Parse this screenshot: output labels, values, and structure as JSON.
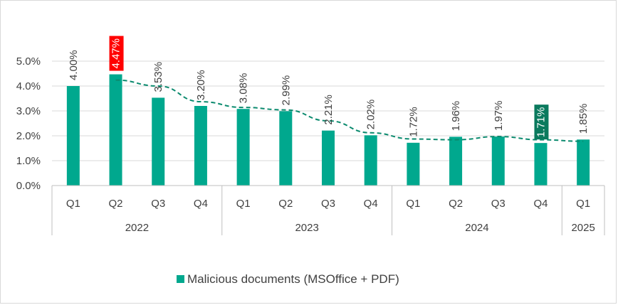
{
  "chart_data": {
    "type": "bar",
    "categories": [
      "Q1",
      "Q2",
      "Q3",
      "Q4",
      "Q1",
      "Q2",
      "Q3",
      "Q4",
      "Q1",
      "Q2",
      "Q3",
      "Q4",
      "Q1"
    ],
    "groups": [
      {
        "label": "2022",
        "count": 4
      },
      {
        "label": "2023",
        "count": 4
      },
      {
        "label": "2024",
        "count": 4
      },
      {
        "label": "2025",
        "count": 1
      }
    ],
    "series": [
      {
        "name": "Malicious documents (MSOffice + PDF)",
        "values": [
          4.0,
          4.47,
          3.53,
          3.2,
          3.08,
          2.99,
          2.21,
          2.02,
          1.72,
          1.96,
          1.97,
          1.71,
          1.85
        ],
        "labels": [
          "4.00%",
          "4.47%",
          "3.53%",
          "3.20%",
          "3.08%",
          "2.99%",
          "2.21%",
          "2.02%",
          "1.72%",
          "1.96%",
          "1.97%",
          "1.71%",
          "1.85%"
        ]
      }
    ],
    "trendline": {
      "type": "moving-average",
      "style": "dashed",
      "values": [
        null,
        4.24,
        4.0,
        3.37,
        3.14,
        3.04,
        2.6,
        2.12,
        1.87,
        1.84,
        1.97,
        1.84,
        1.78
      ]
    },
    "highlights": [
      {
        "index": 1,
        "color": "#ff0000"
      },
      {
        "index": 11,
        "color": "#0b7a5e"
      }
    ],
    "yticks": [
      "0.0%",
      "1.0%",
      "2.0%",
      "3.0%",
      "4.0%",
      "5.0%"
    ],
    "ylim": [
      0,
      5
    ],
    "grid": true,
    "legend_position": "bottom",
    "colors": {
      "bar": "#00a88e",
      "trend": "#0b8a6e",
      "grid": "#d9d9d9",
      "axis": "#bfbfbf"
    }
  }
}
